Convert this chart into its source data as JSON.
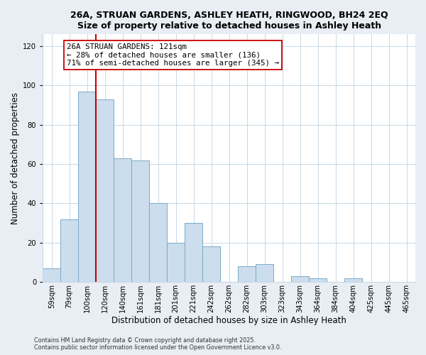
{
  "title_line1": "26A, STRUAN GARDENS, ASHLEY HEATH, RINGWOOD, BH24 2EQ",
  "title_line2": "Size of property relative to detached houses in Ashley Heath",
  "xlabel": "Distribution of detached houses by size in Ashley Heath",
  "ylabel": "Number of detached properties",
  "bin_labels": [
    "59sqm",
    "79sqm",
    "100sqm",
    "120sqm",
    "140sqm",
    "161sqm",
    "181sqm",
    "201sqm",
    "221sqm",
    "242sqm",
    "262sqm",
    "282sqm",
    "303sqm",
    "323sqm",
    "343sqm",
    "364sqm",
    "384sqm",
    "404sqm",
    "425sqm",
    "445sqm",
    "465sqm"
  ],
  "bar_heights": [
    7,
    32,
    97,
    93,
    63,
    62,
    40,
    20,
    30,
    18,
    0,
    8,
    9,
    0,
    3,
    2,
    0,
    2,
    0,
    0,
    0
  ],
  "bar_color": "#ccdded",
  "bar_edge_color": "#7aaac8",
  "vline_color": "#cc0000",
  "annotation_text": "26A STRUAN GARDENS: 121sqm\n← 28% of detached houses are smaller (136)\n71% of semi-detached houses are larger (345) →",
  "annotation_box_color": "#ffffff",
  "annotation_box_edge_color": "#cc0000",
  "ylim": [
    0,
    126
  ],
  "yticks": [
    0,
    20,
    40,
    60,
    80,
    100,
    120
  ],
  "footer_line1": "Contains HM Land Registry data © Crown copyright and database right 2025.",
  "footer_line2": "Contains public sector information licensed under the Open Government Licence v3.0.",
  "background_color": "#e8eef4",
  "plot_background": "#ffffff",
  "grid_color": "#c8d8e4",
  "title_fontsize": 9.0,
  "xlabel_fontsize": 8.5,
  "ylabel_fontsize": 8.5,
  "tick_fontsize": 7.2,
  "annotation_fontsize": 7.8,
  "footer_fontsize": 5.8
}
